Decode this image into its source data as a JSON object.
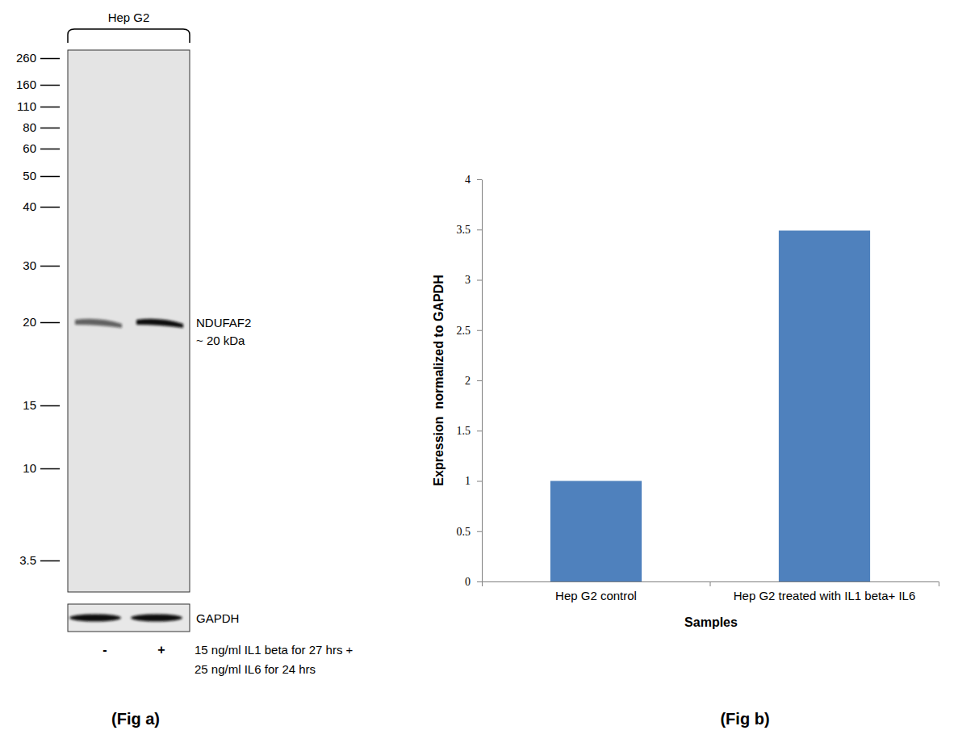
{
  "chart_data": [
    {
      "type": "blot",
      "title": "Hep G2",
      "caption": "(Fig a)",
      "yticks": [
        260,
        160,
        110,
        80,
        60,
        50,
        40,
        30,
        20,
        15,
        10,
        3.5
      ],
      "lanes": [
        "-",
        "+"
      ],
      "band_kda": 20,
      "band_label": [
        "NDUFAF2",
        "~ 20 kDa"
      ],
      "loading_control": "GAPDH",
      "treatment": [
        "15 ng/ml IL1 beta for 27 hrs +",
        "25 ng/ml IL6 for 24 hrs"
      ]
    },
    {
      "type": "bar",
      "caption": "(Fig b)",
      "y_label": "Expression  normalized to GAPDH",
      "x_label": "Samples",
      "categories": [
        "Hep G2 control",
        "Hep G2 treated with IL1 beta+ IL6"
      ],
      "values": [
        1,
        3.49
      ],
      "color": "#4f81bd",
      "ylim": [
        0,
        4
      ],
      "yticks": [
        0,
        0.5,
        1,
        1.5,
        2,
        2.5,
        3,
        3.5,
        4
      ],
      "grid": false
    }
  ]
}
